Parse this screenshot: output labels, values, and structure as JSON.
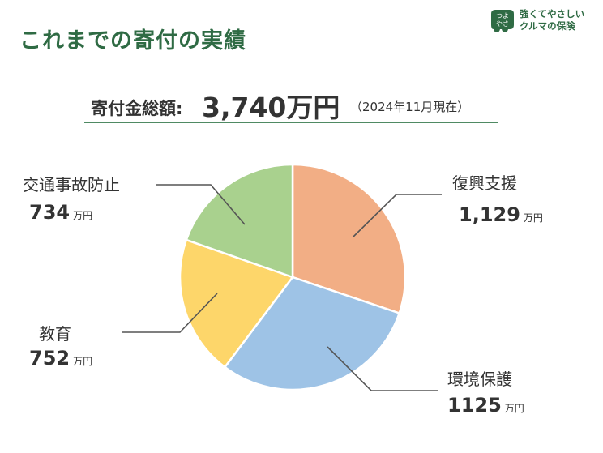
{
  "title": "これまでの寄付の実績",
  "logo": {
    "mark_text_top": "つよ",
    "mark_text_bottom": "やさ",
    "line1": "強くてやさしい",
    "line2": "クルマの保険",
    "color": "#2f6b44"
  },
  "total": {
    "label": "寄付金総額:",
    "value": "3,740万円",
    "date": "（2024年11月現在）"
  },
  "chart_data": {
    "type": "pie",
    "title": "",
    "unit": "万円",
    "start_angle_deg": 0,
    "direction": "clockwise",
    "slices": [
      {
        "name": "復興支援",
        "value": 1129,
        "display": "1,129",
        "color": "#f2ae85"
      },
      {
        "name": "環境保護",
        "value": 1125,
        "display": "1125",
        "color": "#9ec3e6"
      },
      {
        "name": "教育",
        "value": 752,
        "display": "752",
        "color": "#fdd66a"
      },
      {
        "name": "交通事故防止",
        "value": 734,
        "display": "734",
        "color": "#a9d18e"
      }
    ]
  }
}
